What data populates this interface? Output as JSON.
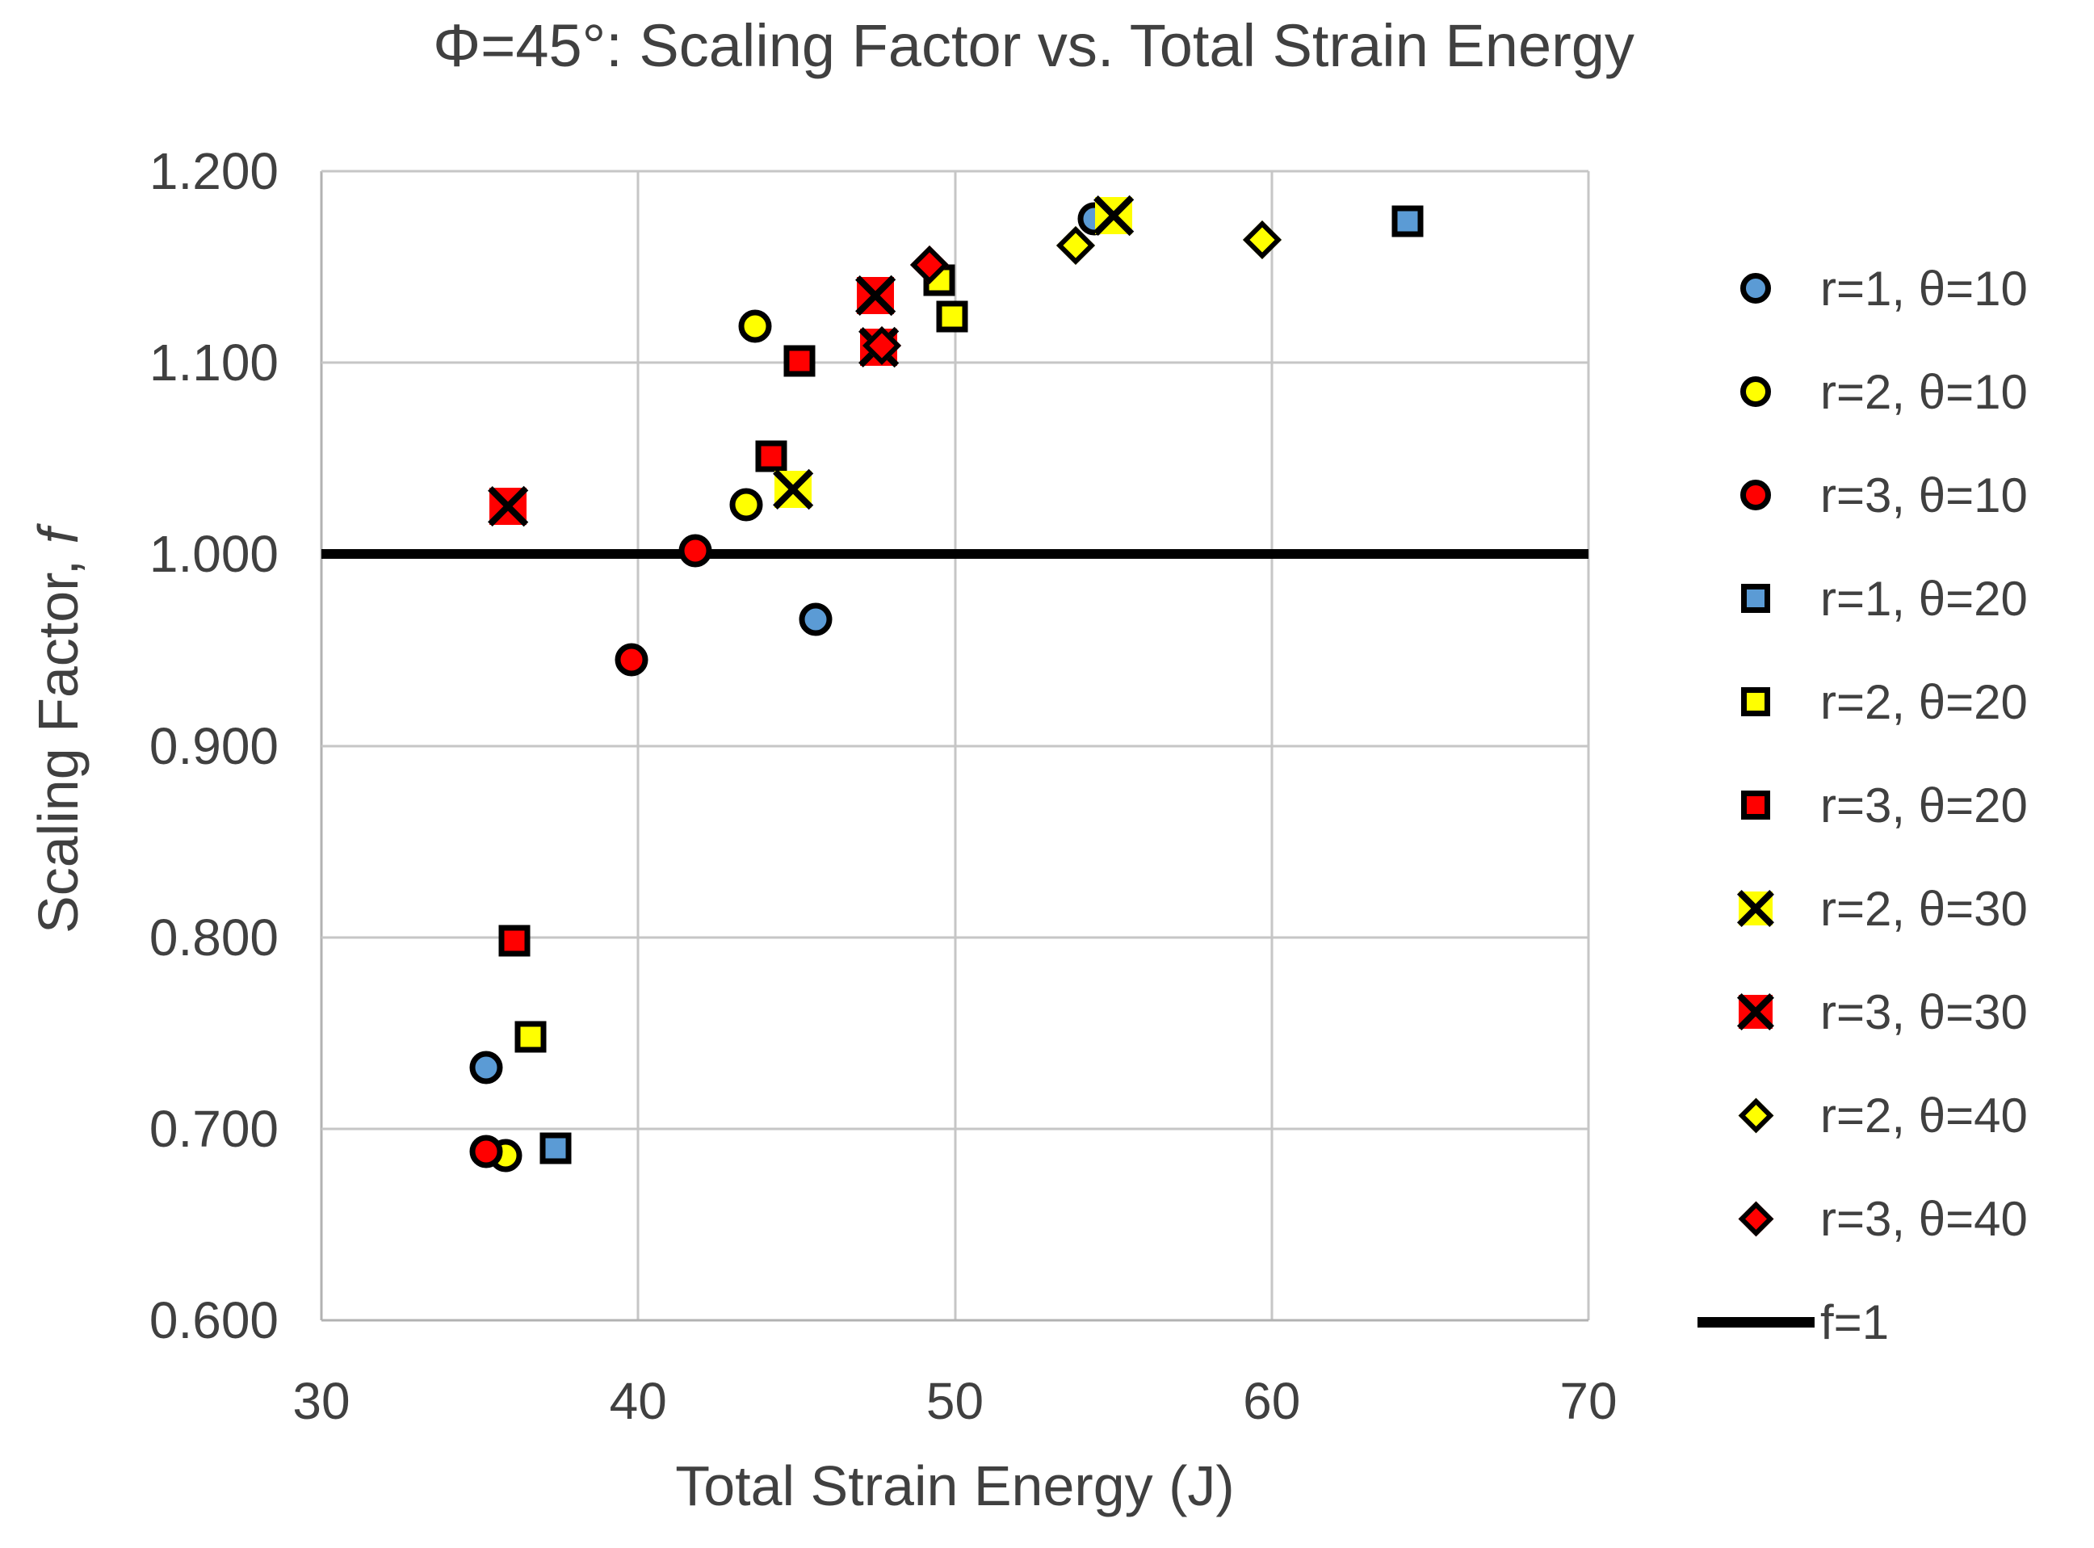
{
  "chart": {
    "title": "Φ=45°: Scaling Factor vs. Total Strain Energy"
  },
  "labels": {
    "y_title_main": "Scaling Factor, ",
    "y_title_var": "f",
    "x_title": "Total Strain Energy (J)"
  },
  "colors": {
    "blue": "#5B9BD5",
    "yellow": "#FFFF00",
    "red": "#FF0000",
    "line": "#000000",
    "grid": "#C6C6C6",
    "text": "#404040"
  },
  "chart_data": {
    "type": "scatter",
    "title": "Φ=45°: Scaling Factor vs. Total Strain Energy",
    "xlabel": "Total Strain Energy (J)",
    "ylabel": "Scaling Factor, f",
    "xlim": [
      30,
      70
    ],
    "ylim": [
      0.6,
      1.2
    ],
    "x_ticks": [
      "30",
      "40",
      "50",
      "60",
      "70"
    ],
    "y_ticks": [
      "0.600",
      "0.700",
      "0.800",
      "0.900",
      "1.000",
      "1.100",
      "1.200"
    ],
    "grid": true,
    "legend_position": "right",
    "series": [
      {
        "name": "r=1, θ=10",
        "marker": "circle",
        "fill": "#5B9BD5",
        "points": [
          [
            35.2,
            0.732
          ],
          [
            45.6,
            0.966
          ],
          [
            54.4,
            1.175
          ]
        ]
      },
      {
        "name": "r=2, θ=10",
        "marker": "circle",
        "fill": "#FFFF00",
        "points": [
          [
            35.8,
            0.686
          ],
          [
            43.4,
            1.026
          ],
          [
            43.7,
            1.119
          ]
        ]
      },
      {
        "name": "r=3, θ=10",
        "marker": "circle",
        "fill": "#FF0000",
        "points": [
          [
            35.2,
            0.688
          ],
          [
            39.8,
            0.945
          ],
          [
            41.8,
            1.002
          ]
        ]
      },
      {
        "name": "r=1, θ=20",
        "marker": "square",
        "fill": "#5B9BD5",
        "points": [
          [
            37.4,
            0.69
          ],
          [
            64.3,
            1.174
          ]
        ]
      },
      {
        "name": "r=2, θ=20",
        "marker": "square",
        "fill": "#FFFF00",
        "points": [
          [
            36.6,
            0.748
          ],
          [
            49.5,
            1.143
          ],
          [
            49.9,
            1.124
          ]
        ]
      },
      {
        "name": "r=3, θ=20",
        "marker": "square",
        "fill": "#FF0000",
        "points": [
          [
            36.1,
            0.798
          ],
          [
            44.2,
            1.051
          ],
          [
            45.1,
            1.101
          ]
        ]
      },
      {
        "name": "r=2, θ=30",
        "marker": "xsquare",
        "fill": "#FFFF00",
        "points": [
          [
            44.9,
            1.034
          ],
          [
            55.0,
            1.177
          ]
        ]
      },
      {
        "name": "r=3, θ=30",
        "marker": "xsquare",
        "fill": "#FF0000",
        "points": [
          [
            35.9,
            1.025
          ],
          [
            47.5,
            1.135
          ],
          [
            47.6,
            1.108
          ]
        ]
      },
      {
        "name": "r=2, θ=40",
        "marker": "diamond",
        "fill": "#FFFF00",
        "points": [
          [
            53.8,
            1.161
          ],
          [
            59.7,
            1.164
          ]
        ]
      },
      {
        "name": "r=3, θ=40",
        "marker": "diamond",
        "fill": "#FF0000",
        "points": [
          [
            47.7,
            1.109
          ],
          [
            49.2,
            1.151
          ]
        ]
      },
      {
        "name": "f=1",
        "marker": "line",
        "fill": "#000000",
        "ref_y": 1.0
      }
    ]
  }
}
